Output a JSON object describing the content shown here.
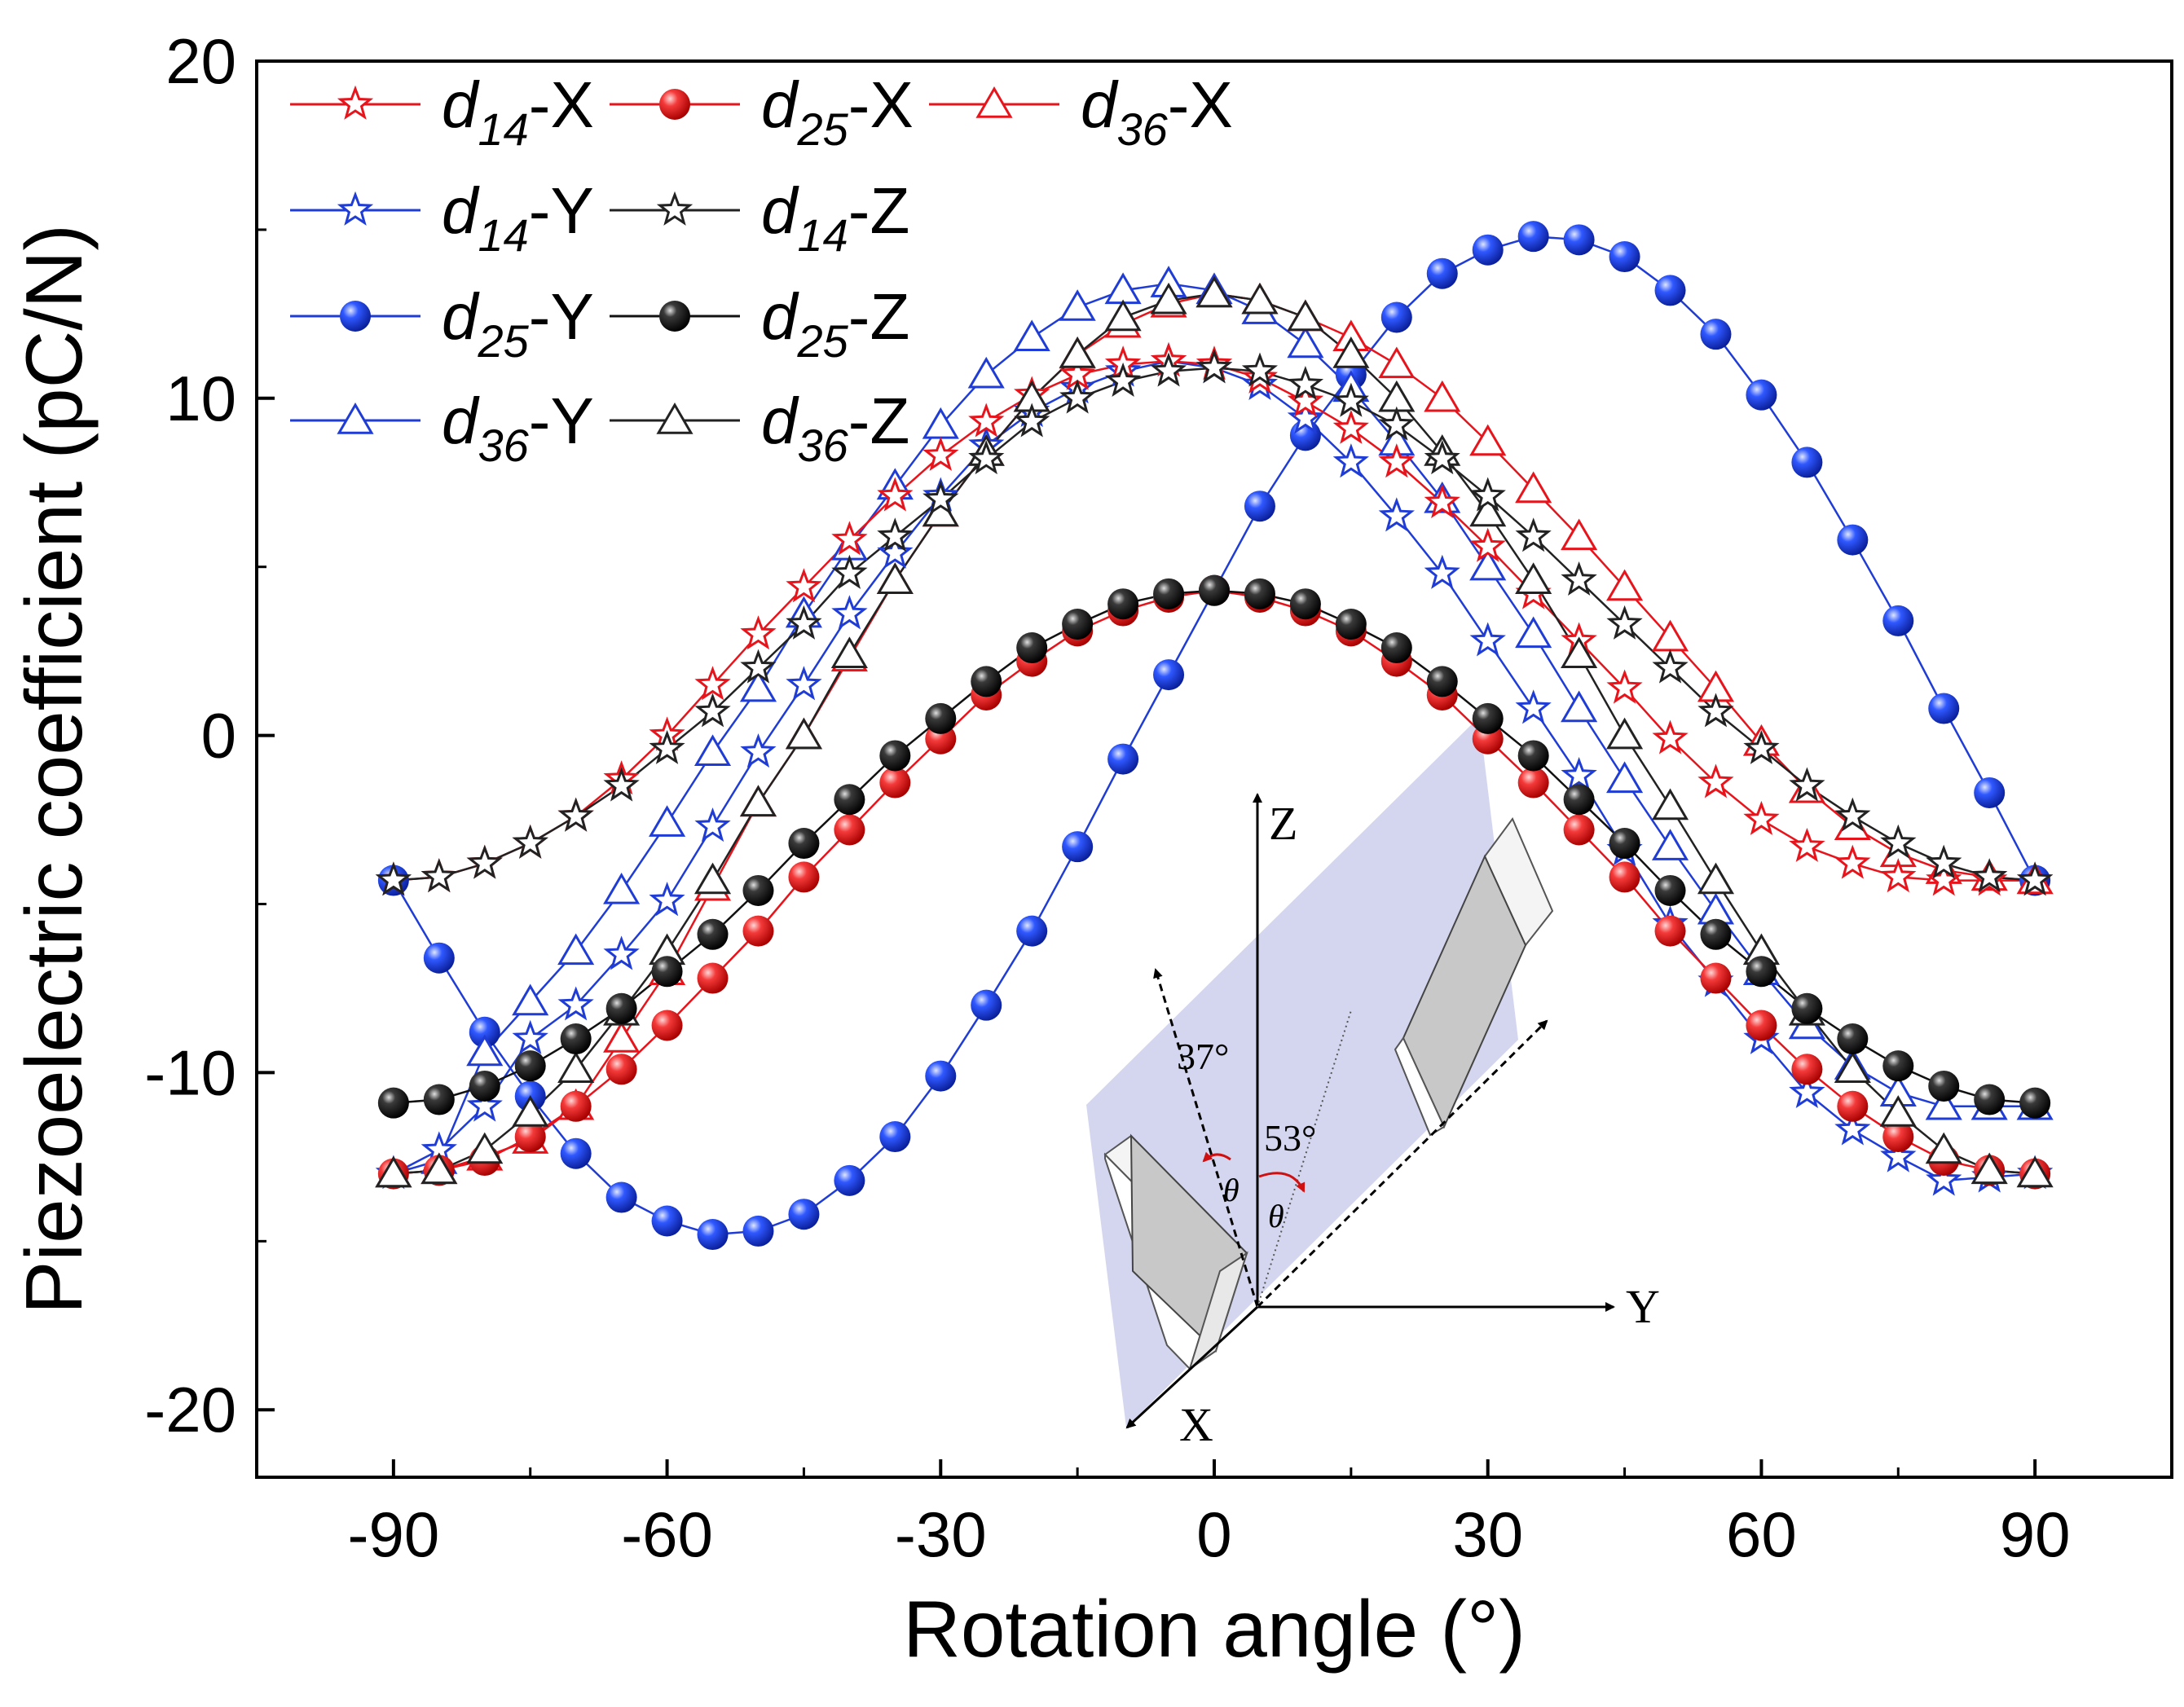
{
  "chart_data": {
    "type": "line",
    "title": "",
    "xlabel": "Rotation angle (°)",
    "ylabel": "Piezoelectric coefficient (pC/N)",
    "xlim": [
      -105,
      105
    ],
    "ylim": [
      -22,
      20
    ],
    "xticks": [
      -90,
      -60,
      -30,
      0,
      30,
      60,
      90
    ],
    "yticks": [
      -20,
      -10,
      0,
      10,
      20
    ],
    "grid": false,
    "legend_position": "top-left",
    "x": [
      -90,
      -85,
      -80,
      -75,
      -70,
      -65,
      -60,
      -55,
      -50,
      -45,
      -40,
      -35,
      -30,
      -25,
      -20,
      -15,
      -10,
      -5,
      0,
      5,
      10,
      15,
      20,
      25,
      30,
      35,
      40,
      45,
      50,
      55,
      60,
      65,
      70,
      75,
      80,
      85,
      90
    ],
    "series": [
      {
        "name": "d14-X",
        "sub": "14",
        "axis": "X",
        "color": "#e8141c",
        "marker": "star",
        "filled": false,
        "values": [
          -4.3,
          -4.2,
          -3.8,
          -3.2,
          -2.4,
          -1.3,
          0.0,
          1.5,
          3.0,
          4.4,
          5.8,
          7.1,
          8.3,
          9.3,
          10.1,
          10.7,
          11.0,
          11.1,
          11.0,
          10.6,
          9.9,
          9.1,
          8.1,
          6.9,
          5.6,
          4.2,
          2.8,
          1.4,
          -0.1,
          -1.4,
          -2.5,
          -3.3,
          -3.8,
          -4.2,
          -4.3,
          -4.3,
          -4.3
        ]
      },
      {
        "name": "d25-X",
        "sub": "25",
        "axis": "X",
        "color": "#e8141c",
        "marker": "circle",
        "filled": true,
        "values": [
          -13.0,
          -12.9,
          -12.6,
          -11.9,
          -11.0,
          -9.9,
          -8.6,
          -7.2,
          -5.8,
          -4.2,
          -2.8,
          -1.4,
          -0.1,
          1.2,
          2.2,
          3.1,
          3.7,
          4.1,
          4.3,
          4.1,
          3.7,
          3.1,
          2.2,
          1.2,
          -0.1,
          -1.4,
          -2.8,
          -4.2,
          -5.8,
          -7.2,
          -8.6,
          -9.9,
          -11.0,
          -11.9,
          -12.6,
          -12.9,
          -13.0
        ]
      },
      {
        "name": "d36-X",
        "sub": "36",
        "axis": "X",
        "color": "#e8141c",
        "marker": "triangle",
        "filled": false,
        "values": [
          -13.0,
          -12.9,
          -12.5,
          -12.0,
          -11.0,
          -9.0,
          -7.0,
          -4.5,
          -2.0,
          0.0,
          2.3,
          4.6,
          6.6,
          8.4,
          10.0,
          11.3,
          12.2,
          12.8,
          13.1,
          12.9,
          12.4,
          11.8,
          11.0,
          10.0,
          8.7,
          7.3,
          5.9,
          4.4,
          2.9,
          1.4,
          -0.2,
          -1.6,
          -2.7,
          -3.5,
          -4.0,
          -4.2,
          -4.3
        ]
      },
      {
        "name": "d14-Y",
        "sub": "14",
        "axis": "Y",
        "color": "#1f3dd6",
        "marker": "star",
        "filled": false,
        "values": [
          -13.0,
          -12.3,
          -11.0,
          -9.0,
          -8.0,
          -6.5,
          -4.9,
          -2.7,
          -0.5,
          1.5,
          3.6,
          5.4,
          7.1,
          8.6,
          9.6,
          10.3,
          10.8,
          11.1,
          10.9,
          10.4,
          9.4,
          8.1,
          6.5,
          4.8,
          2.8,
          0.8,
          -1.2,
          -3.4,
          -5.6,
          -7.3,
          -9.0,
          -10.6,
          -11.7,
          -12.5,
          -13.2,
          -13.1,
          -13.0
        ]
      },
      {
        "name": "d14-Z",
        "sub": "14",
        "axis": "Z",
        "color": "#222222",
        "marker": "star",
        "filled": false,
        "values": [
          -4.3,
          -4.2,
          -3.8,
          -3.2,
          -2.4,
          -1.5,
          -0.4,
          0.7,
          2.0,
          3.3,
          4.8,
          5.9,
          7.0,
          8.2,
          9.3,
          10.0,
          10.5,
          10.8,
          10.9,
          10.8,
          10.4,
          9.9,
          9.2,
          8.2,
          7.1,
          5.9,
          4.6,
          3.3,
          2.0,
          0.7,
          -0.4,
          -1.5,
          -2.4,
          -3.2,
          -3.8,
          -4.2,
          -4.3
        ]
      },
      {
        "name": "d25-Y",
        "sub": "25",
        "axis": "Y",
        "color": "#1f3dd6",
        "marker": "circle",
        "filled": true,
        "values": [
          -4.3,
          -6.6,
          -8.8,
          -10.7,
          -12.4,
          -13.7,
          -14.4,
          -14.8,
          -14.7,
          -14.2,
          -13.2,
          -11.9,
          -10.1,
          -8.0,
          -5.8,
          -3.3,
          -0.7,
          1.8,
          4.3,
          6.8,
          8.9,
          10.7,
          12.4,
          13.7,
          14.4,
          14.8,
          14.7,
          14.2,
          13.2,
          11.9,
          10.1,
          8.1,
          5.8,
          3.4,
          0.8,
          -1.7,
          -4.3
        ]
      },
      {
        "name": "d25-Z",
        "sub": "25",
        "axis": "Z",
        "color": "#111111",
        "marker": "circle",
        "filled": true,
        "values": [
          -10.9,
          -10.8,
          -10.4,
          -9.8,
          -9.0,
          -8.1,
          -7.0,
          -5.9,
          -4.6,
          -3.2,
          -1.9,
          -0.6,
          0.5,
          1.6,
          2.6,
          3.3,
          3.9,
          4.2,
          4.3,
          4.2,
          3.9,
          3.3,
          2.6,
          1.6,
          0.5,
          -0.6,
          -1.9,
          -3.2,
          -4.6,
          -5.9,
          -7.0,
          -8.1,
          -9.0,
          -9.8,
          -10.4,
          -10.8,
          -10.9
        ]
      },
      {
        "name": "d36-Y",
        "sub": "36",
        "axis": "Y",
        "color": "#1f3dd6",
        "marker": "triangle",
        "filled": false,
        "values": [
          -13.0,
          -12.6,
          -9.4,
          -7.9,
          -6.4,
          -4.6,
          -2.6,
          -0.5,
          1.4,
          3.6,
          5.6,
          7.4,
          9.2,
          10.7,
          11.8,
          12.7,
          13.2,
          13.4,
          13.2,
          12.6,
          11.6,
          10.3,
          8.7,
          7.0,
          5.0,
          3.0,
          0.8,
          -1.3,
          -3.3,
          -5.2,
          -7.0,
          -8.6,
          -9.8,
          -10.6,
          -11.0,
          -11.0,
          -11.0
        ]
      },
      {
        "name": "d36-Z",
        "sub": "36",
        "axis": "Z",
        "color": "#222222",
        "marker": "triangle",
        "filled": false,
        "values": [
          -13.0,
          -12.9,
          -12.3,
          -11.2,
          -9.9,
          -8.2,
          -6.4,
          -4.3,
          -2.0,
          0.0,
          2.4,
          4.6,
          6.6,
          8.4,
          10.0,
          11.3,
          12.4,
          12.9,
          13.1,
          12.9,
          12.4,
          11.3,
          10.0,
          8.4,
          6.6,
          4.6,
          2.4,
          0.0,
          -2.1,
          -4.3,
          -6.4,
          -8.2,
          -9.9,
          -11.2,
          -12.3,
          -12.9,
          -13.0
        ]
      }
    ],
    "annotations": {
      "inset_axes": {
        "z": "Z",
        "y": "Y",
        "x": "X"
      },
      "angle_left": "37°",
      "angle_right": "53°",
      "theta": "θ"
    }
  }
}
